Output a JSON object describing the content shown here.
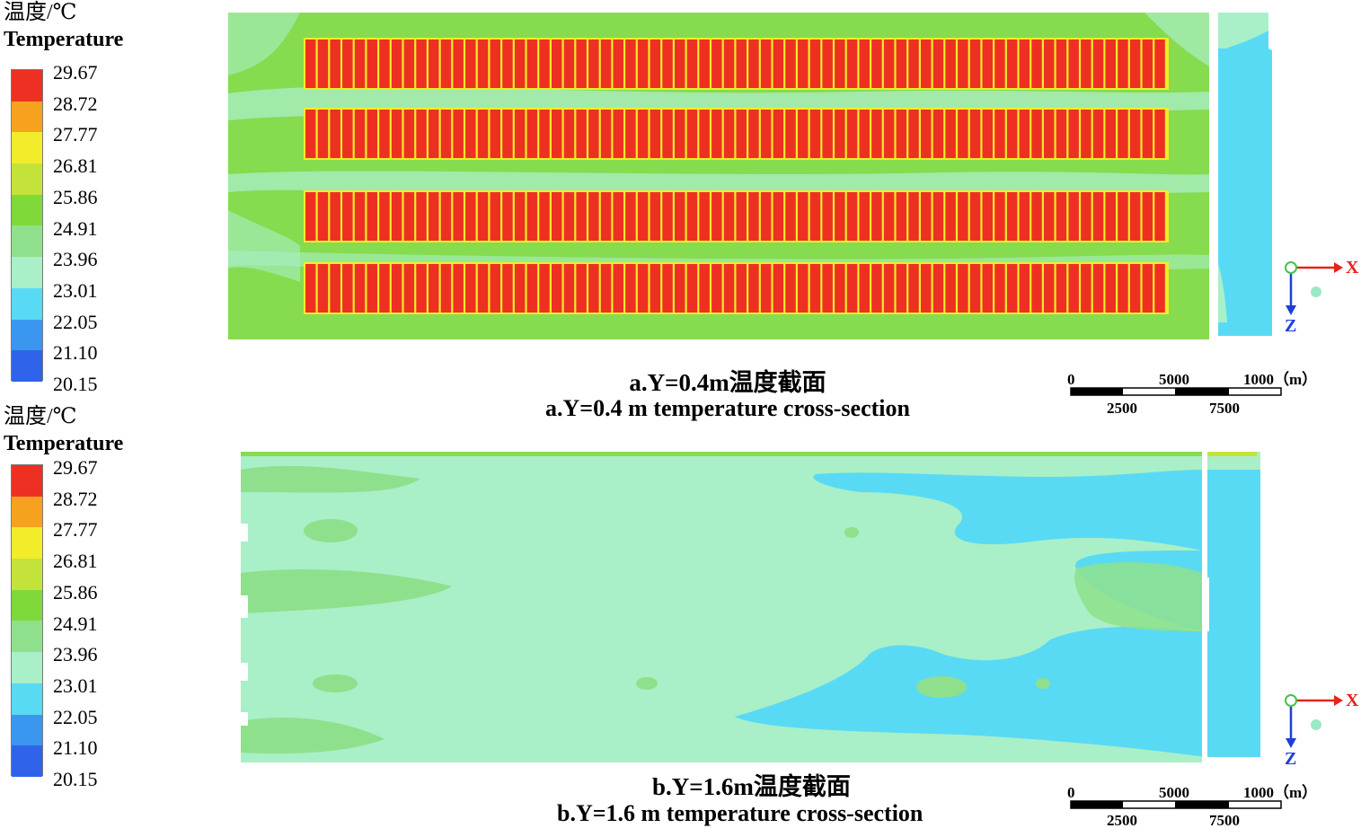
{
  "legend": {
    "title_cn": "温度/℃",
    "title_en": "Temperature",
    "ticks": [
      "29.67",
      "28.72",
      "27.77",
      "26.81",
      "25.86",
      "24.91",
      "23.96",
      "23.01",
      "22.05",
      "21.10",
      "20.15"
    ],
    "colors": [
      "#ee3022",
      "#f7a21e",
      "#f3ec2a",
      "#c4e33a",
      "#7fd93b",
      "#8fe08c",
      "#a9efc7",
      "#58daf4",
      "#3b96f0",
      "#2f64ea"
    ]
  },
  "panel_a": {
    "caption_cn": "a.Y=0.4m温度截面",
    "caption_en": "a.Y=0.4 m temperature cross-section"
  },
  "panel_b": {
    "caption_cn": "b.Y=1.6m温度截面",
    "caption_en": "b.Y=1.6 m temperature cross-section"
  },
  "scale": {
    "top_labels": [
      "0",
      "5000",
      "1000（m）"
    ],
    "bottom_labels": [
      "2500",
      "7500"
    ]
  },
  "axes": {
    "x_label": "X",
    "z_label": "Z"
  }
}
